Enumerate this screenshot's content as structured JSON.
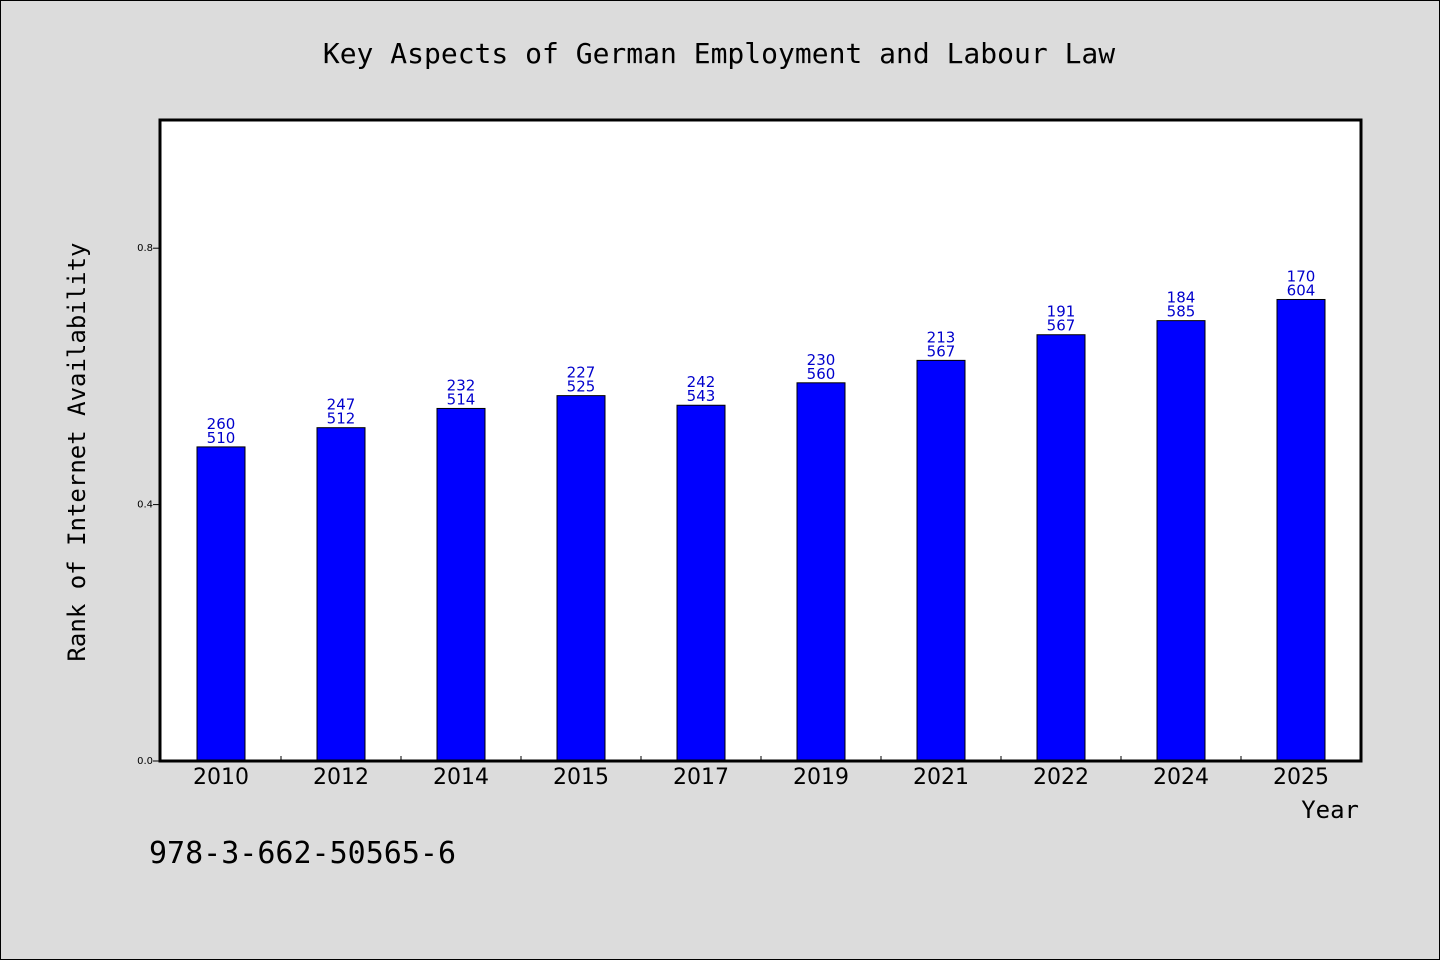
{
  "chart_data": {
    "type": "bar",
    "title": "Key Aspects of German Employment and Labour Law",
    "xlabel": "Year",
    "ylabel": "Rank of Internet Availability",
    "categories": [
      "2010",
      "2012",
      "2014",
      "2015",
      "2017",
      "2019",
      "2021",
      "2022",
      "2024",
      "2025"
    ],
    "series": [
      {
        "values": [
          0.49,
          0.52,
          0.55,
          0.57,
          0.555,
          0.59,
          0.625,
          0.665,
          0.687,
          0.72
        ]
      }
    ],
    "annotations_top": [
      "260",
      "247",
      "232",
      "227",
      "242",
      "230",
      "213",
      "191",
      "184",
      "170"
    ],
    "annotations_bottom": [
      "510",
      "512",
      "514",
      "525",
      "543",
      "560",
      "567",
      "567",
      "585",
      "604"
    ],
    "ylim": [
      0.0,
      1.0
    ],
    "yticks": [
      0.0,
      0.4,
      0.8
    ],
    "ytick_labels": [
      "0.0",
      "0.4",
      "0.8"
    ],
    "grid": false,
    "bar_color": "#0000ff",
    "label_color": "#0000cc",
    "background_color": "#dcdcdc",
    "plot_background": "#ffffff"
  },
  "footer": {
    "isbn": "978-3-662-50565-6"
  }
}
